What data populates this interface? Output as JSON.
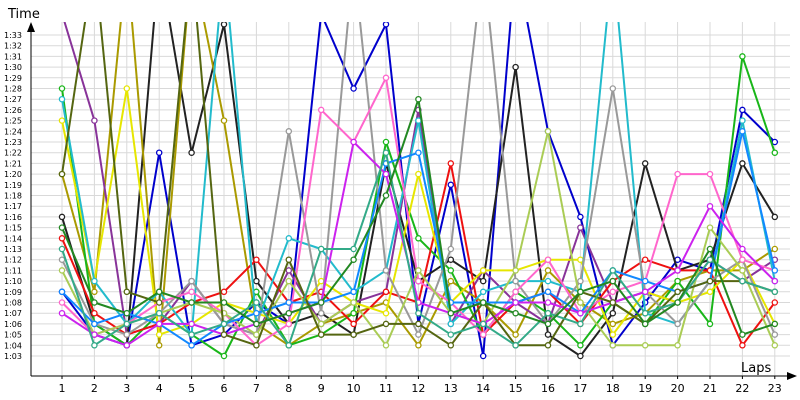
{
  "chart_data": {
    "type": "line",
    "title": "",
    "xlabel": "Laps",
    "ylabel": "Time",
    "x": [
      1,
      2,
      3,
      4,
      5,
      6,
      7,
      8,
      9,
      10,
      11,
      12,
      13,
      14,
      15,
      16,
      17,
      18,
      19,
      20,
      21,
      22,
      23
    ],
    "x_tick_labels": [
      "1",
      "2",
      "3",
      "4",
      "5",
      "6",
      "7",
      "8",
      "9",
      "10",
      "11",
      "12",
      "13",
      "14",
      "15",
      "16",
      "17",
      "18",
      "19",
      "20",
      "21",
      "22",
      "23"
    ],
    "y_unit": "seconds",
    "ylim": [
      62,
      96
    ],
    "y_ticks": [
      63,
      64,
      65,
      66,
      67,
      68,
      69,
      70,
      71,
      72,
      73,
      74,
      75,
      76,
      77,
      78,
      79,
      80,
      81,
      82,
      83,
      84,
      85,
      86,
      87,
      88,
      89,
      90,
      91,
      92,
      93
    ],
    "y_tick_labels": [
      "1:03",
      "1:04",
      "1:05",
      "1:06",
      "1:07",
      "1:08",
      "1:09",
      "1:10",
      "1:11",
      "1:12",
      "1:13",
      "1:14",
      "1:15",
      "1:16",
      "1:17",
      "1:18",
      "1:19",
      "1:20",
      "1:21",
      "1:22",
      "1:23",
      "1:24",
      "1:25",
      "1:26",
      "1:27",
      "1:28",
      "1:29",
      "1:30",
      "1:31",
      "1:32",
      "1:33"
    ],
    "grid": true,
    "legend": "none",
    "series": [
      {
        "color": "#0000cc",
        "values": [
          69,
          65,
          64,
          82,
          64,
          65,
          68,
          66,
          95,
          88,
          94,
          66,
          79,
          63,
          100,
          84,
          76,
          64,
          68,
          72,
          71,
          86,
          83
        ]
      },
      {
        "color": "#222222",
        "values": [
          76,
          66,
          64,
          100,
          82,
          94,
          70,
          66,
          67,
          65,
          81,
          70,
          72,
          70,
          90,
          65,
          63,
          67,
          81,
          71,
          72,
          81,
          76
        ]
      },
      {
        "color": "#aa9a00",
        "values": [
          80,
          69,
          100,
          64,
          100,
          85,
          66,
          64,
          66,
          67,
          68,
          64,
          70,
          68,
          65,
          71,
          68,
          66,
          67,
          70,
          71,
          71,
          73
        ]
      },
      {
        "color": "#883399",
        "values": [
          95,
          85,
          65,
          66,
          70,
          66,
          65,
          71,
          66,
          68,
          69,
          86,
          66,
          71,
          68,
          66,
          75,
          68,
          69,
          68,
          72,
          70,
          72
        ]
      },
      {
        "color": "#19b619",
        "values": [
          88,
          66,
          64,
          67,
          65,
          63,
          69,
          64,
          65,
          67,
          83,
          74,
          71,
          65,
          69,
          67,
          64,
          68,
          66,
          70,
          66,
          91,
          82
        ]
      },
      {
        "color": "#ee1111",
        "values": [
          74,
          67,
          65,
          66,
          68,
          69,
          72,
          68,
          69,
          66,
          69,
          68,
          81,
          65,
          68,
          69,
          66,
          70,
          72,
          71,
          71,
          64,
          68
        ]
      },
      {
        "color": "#e6e600",
        "values": [
          85,
          70,
          88,
          65,
          66,
          68,
          67,
          66,
          70,
          68,
          67,
          80,
          68,
          71,
          71,
          72,
          72,
          65,
          69,
          68,
          69,
          72,
          66
        ]
      },
      {
        "color": "#22bbcc",
        "values": [
          87,
          70,
          66,
          69,
          65,
          100,
          66,
          74,
          73,
          69,
          71,
          85,
          66,
          69,
          70,
          70,
          69,
          100,
          67,
          66,
          70,
          85,
          70
        ]
      },
      {
        "color": "#999999",
        "values": [
          72,
          66,
          65,
          67,
          70,
          66,
          65,
          84,
          67,
          100,
          71,
          65,
          73,
          100,
          70,
          66,
          70,
          88,
          69,
          66,
          70,
          72,
          65
        ]
      },
      {
        "color": "#ff66cc",
        "values": [
          68,
          65,
          66,
          68,
          69,
          67,
          64,
          66,
          86,
          83,
          89,
          70,
          68,
          65,
          69,
          72,
          67,
          69,
          70,
          80,
          80,
          72,
          71
        ]
      },
      {
        "color": "#aacc55",
        "values": [
          71,
          65,
          66,
          67,
          68,
          67,
          65,
          70,
          66,
          68,
          64,
          71,
          67,
          66,
          71,
          84,
          68,
          64,
          64,
          64,
          75,
          71,
          64
        ]
      },
      {
        "color": "#1188ff",
        "values": [
          69,
          66,
          67,
          66,
          64,
          66,
          67,
          68,
          68,
          69,
          81,
          82,
          68,
          68,
          68,
          69,
          67,
          71,
          70,
          69,
          70,
          84,
          71
        ]
      },
      {
        "color": "#cc22ee",
        "values": [
          67,
          65,
          64,
          66,
          66,
          65,
          66,
          67,
          68,
          83,
          80,
          68,
          67,
          66,
          68,
          68,
          67,
          68,
          69,
          71,
          77,
          73,
          70
        ]
      },
      {
        "color": "#556611",
        "values": [
          80,
          100,
          69,
          68,
          100,
          65,
          64,
          72,
          65,
          65,
          66,
          66,
          64,
          68,
          64,
          64,
          69,
          68,
          66,
          69,
          70,
          70,
          69
        ]
      },
      {
        "color": "#33aa88",
        "values": [
          73,
          64,
          66,
          67,
          65,
          66,
          68,
          64,
          73,
          73,
          82,
          67,
          65,
          66,
          64,
          67,
          66,
          71,
          67,
          68,
          72,
          70,
          69
        ]
      },
      {
        "color": "#228822",
        "values": [
          75,
          68,
          67,
          69,
          68,
          68,
          66,
          67,
          68,
          72,
          78,
          87,
          67,
          68,
          67,
          66,
          69,
          70,
          66,
          68,
          73,
          65,
          66
        ]
      }
    ]
  }
}
